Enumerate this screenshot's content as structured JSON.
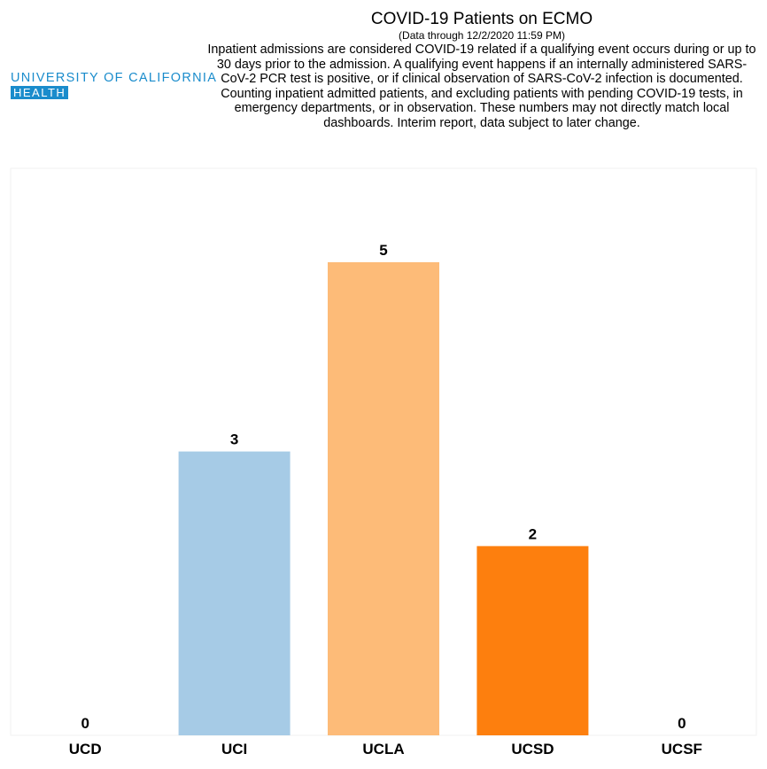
{
  "logo": {
    "line1": "UNIVERSITY OF CALIFORNIA",
    "line2": "HEALTH"
  },
  "header": {
    "title": "COVID-19 Patients on ECMO",
    "subtitle": "(Data through 12/2/2020 11:59 PM)",
    "description": "Inpatient admissions are considered COVID-19 related if a qualifying event occurs during or up to 30 days prior to the admission. A qualifying event happens if an internally administered SARS-CoV-2 PCR test is positive, or if clinical observation of SARS-CoV-2 infection is documented. Counting inpatient admitted patients, and excluding patients with pending COVID-19 tests, in emergency departments, or in observation. These numbers may not directly match local dashboards. Interim report, data subject to later change."
  },
  "chart_data": {
    "type": "bar",
    "title": "COVID-19 Patients on ECMO",
    "categories": [
      "UCD",
      "UCI",
      "UCLA",
      "UCSD",
      "UCSF"
    ],
    "values": [
      0,
      3,
      5,
      2,
      0
    ],
    "colors": [
      "#1f5fa0",
      "#a6cbe6",
      "#fdbb78",
      "#fd7f0e",
      "#999999"
    ],
    "ylim": [
      0,
      5.8
    ],
    "grid": false,
    "legend": "none"
  }
}
